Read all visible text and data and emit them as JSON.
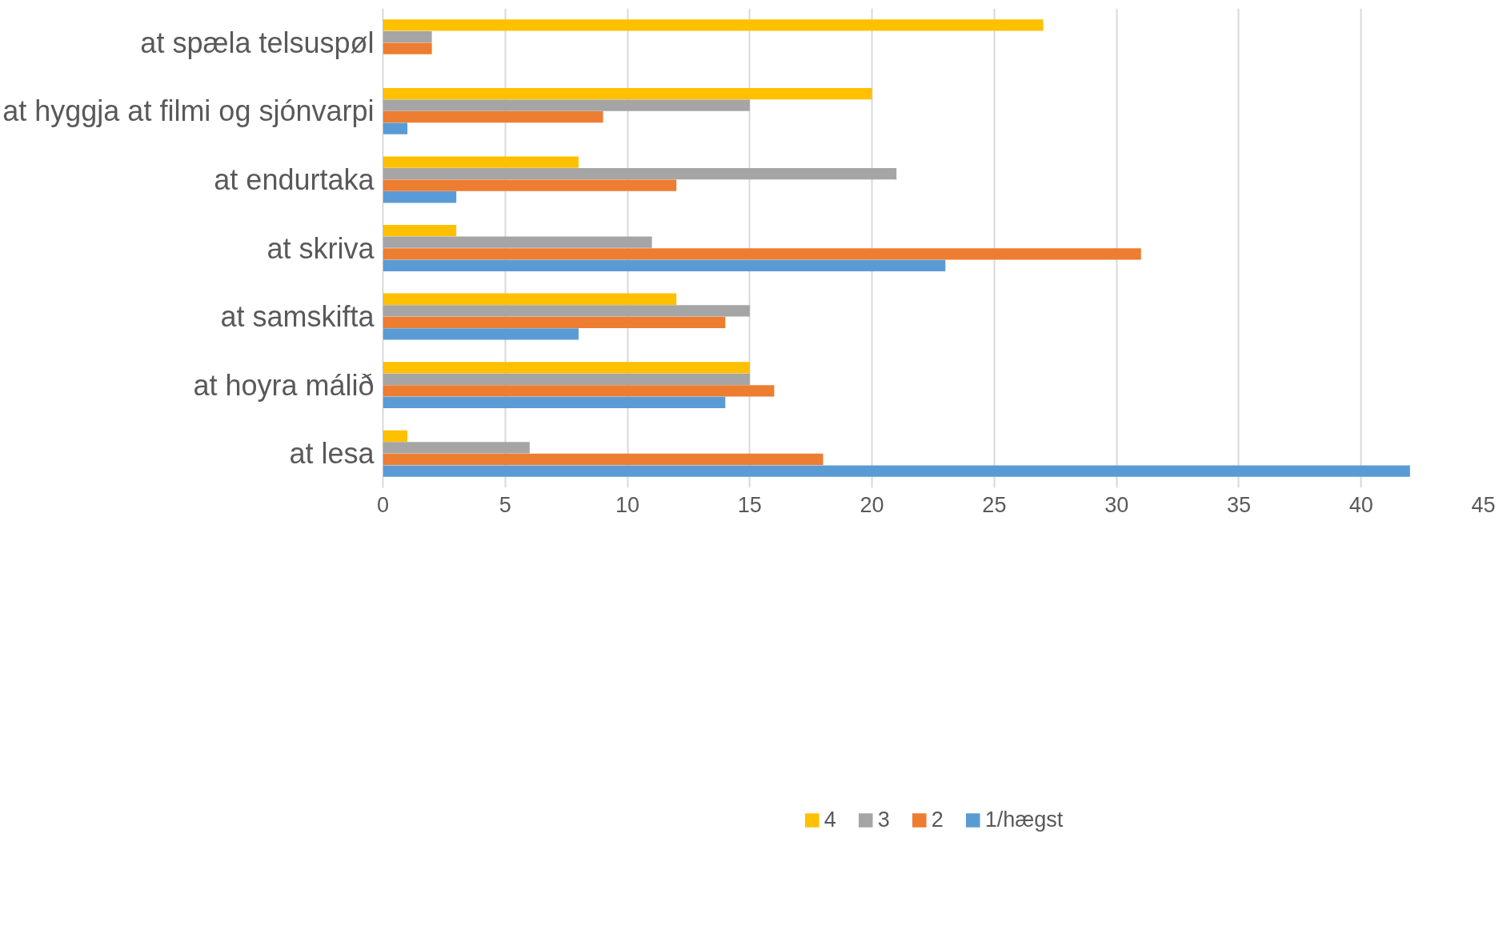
{
  "chart_data": {
    "type": "bar",
    "orientation": "horizontal",
    "categories": [
      "at spæla telsuspøl",
      "at hyggja at filmi og sjónvarpi",
      "at endurtaka",
      "at skriva",
      "at samskifta",
      "at hoyra málið",
      "at lesa"
    ],
    "series": [
      {
        "name": "4",
        "color": "#ffc000",
        "values": [
          27,
          20,
          8,
          3,
          12,
          15,
          1
        ]
      },
      {
        "name": "3",
        "color": "#a5a5a5",
        "values": [
          2,
          15,
          21,
          11,
          15,
          15,
          6
        ]
      },
      {
        "name": "2",
        "color": "#ed7d31",
        "values": [
          2,
          9,
          12,
          31,
          14,
          16,
          18
        ]
      },
      {
        "name": "1/hægst",
        "color": "#5b9bd5",
        "values": [
          0,
          1,
          3,
          23,
          8,
          14,
          42
        ]
      }
    ],
    "xlim": [
      0,
      45
    ],
    "xticks": [
      0,
      5,
      10,
      15,
      20,
      25,
      30,
      35,
      40,
      45
    ],
    "grid": "x",
    "legend": "bottom"
  }
}
